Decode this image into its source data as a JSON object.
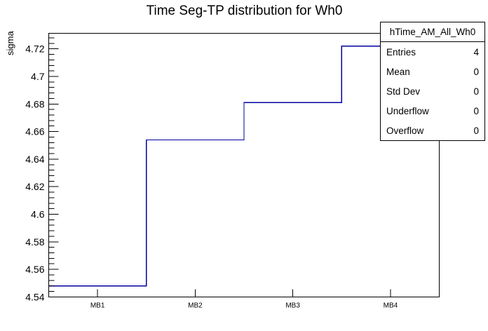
{
  "title": "Time Seg-TP distribution for Wh0",
  "y_axis": {
    "label": "sigma"
  },
  "stats_box": {
    "title": "hTime_AM_All_Wh0",
    "rows": [
      {
        "label": "Entries",
        "value": "4"
      },
      {
        "label": "Mean",
        "value": "0"
      },
      {
        "label": "Std Dev",
        "value": "0"
      },
      {
        "label": "Underflow",
        "value": "0"
      },
      {
        "label": "Overflow",
        "value": "0"
      }
    ]
  },
  "chart_data": {
    "type": "step-histogram",
    "title": "Time Seg-TP distribution for Wh0",
    "xlabel": "",
    "ylabel": "sigma",
    "categories": [
      "MB1",
      "MB2",
      "MB3",
      "MB4"
    ],
    "values": [
      4.548,
      4.654,
      4.681,
      4.722
    ],
    "ylim": [
      4.54,
      4.7313
    ],
    "y_tick_labels": [
      "4.54",
      "4.56",
      "4.58",
      "4.6",
      "4.62",
      "4.64",
      "4.66",
      "4.68",
      "4.7",
      "4.72"
    ],
    "y_major_tick_step": 0.02,
    "y_minor_tick_step": 0.004,
    "grid": false,
    "legend_position": "none",
    "line_color": "#0000a0",
    "frame_color": "#000000",
    "background_color": "#ffffff"
  }
}
